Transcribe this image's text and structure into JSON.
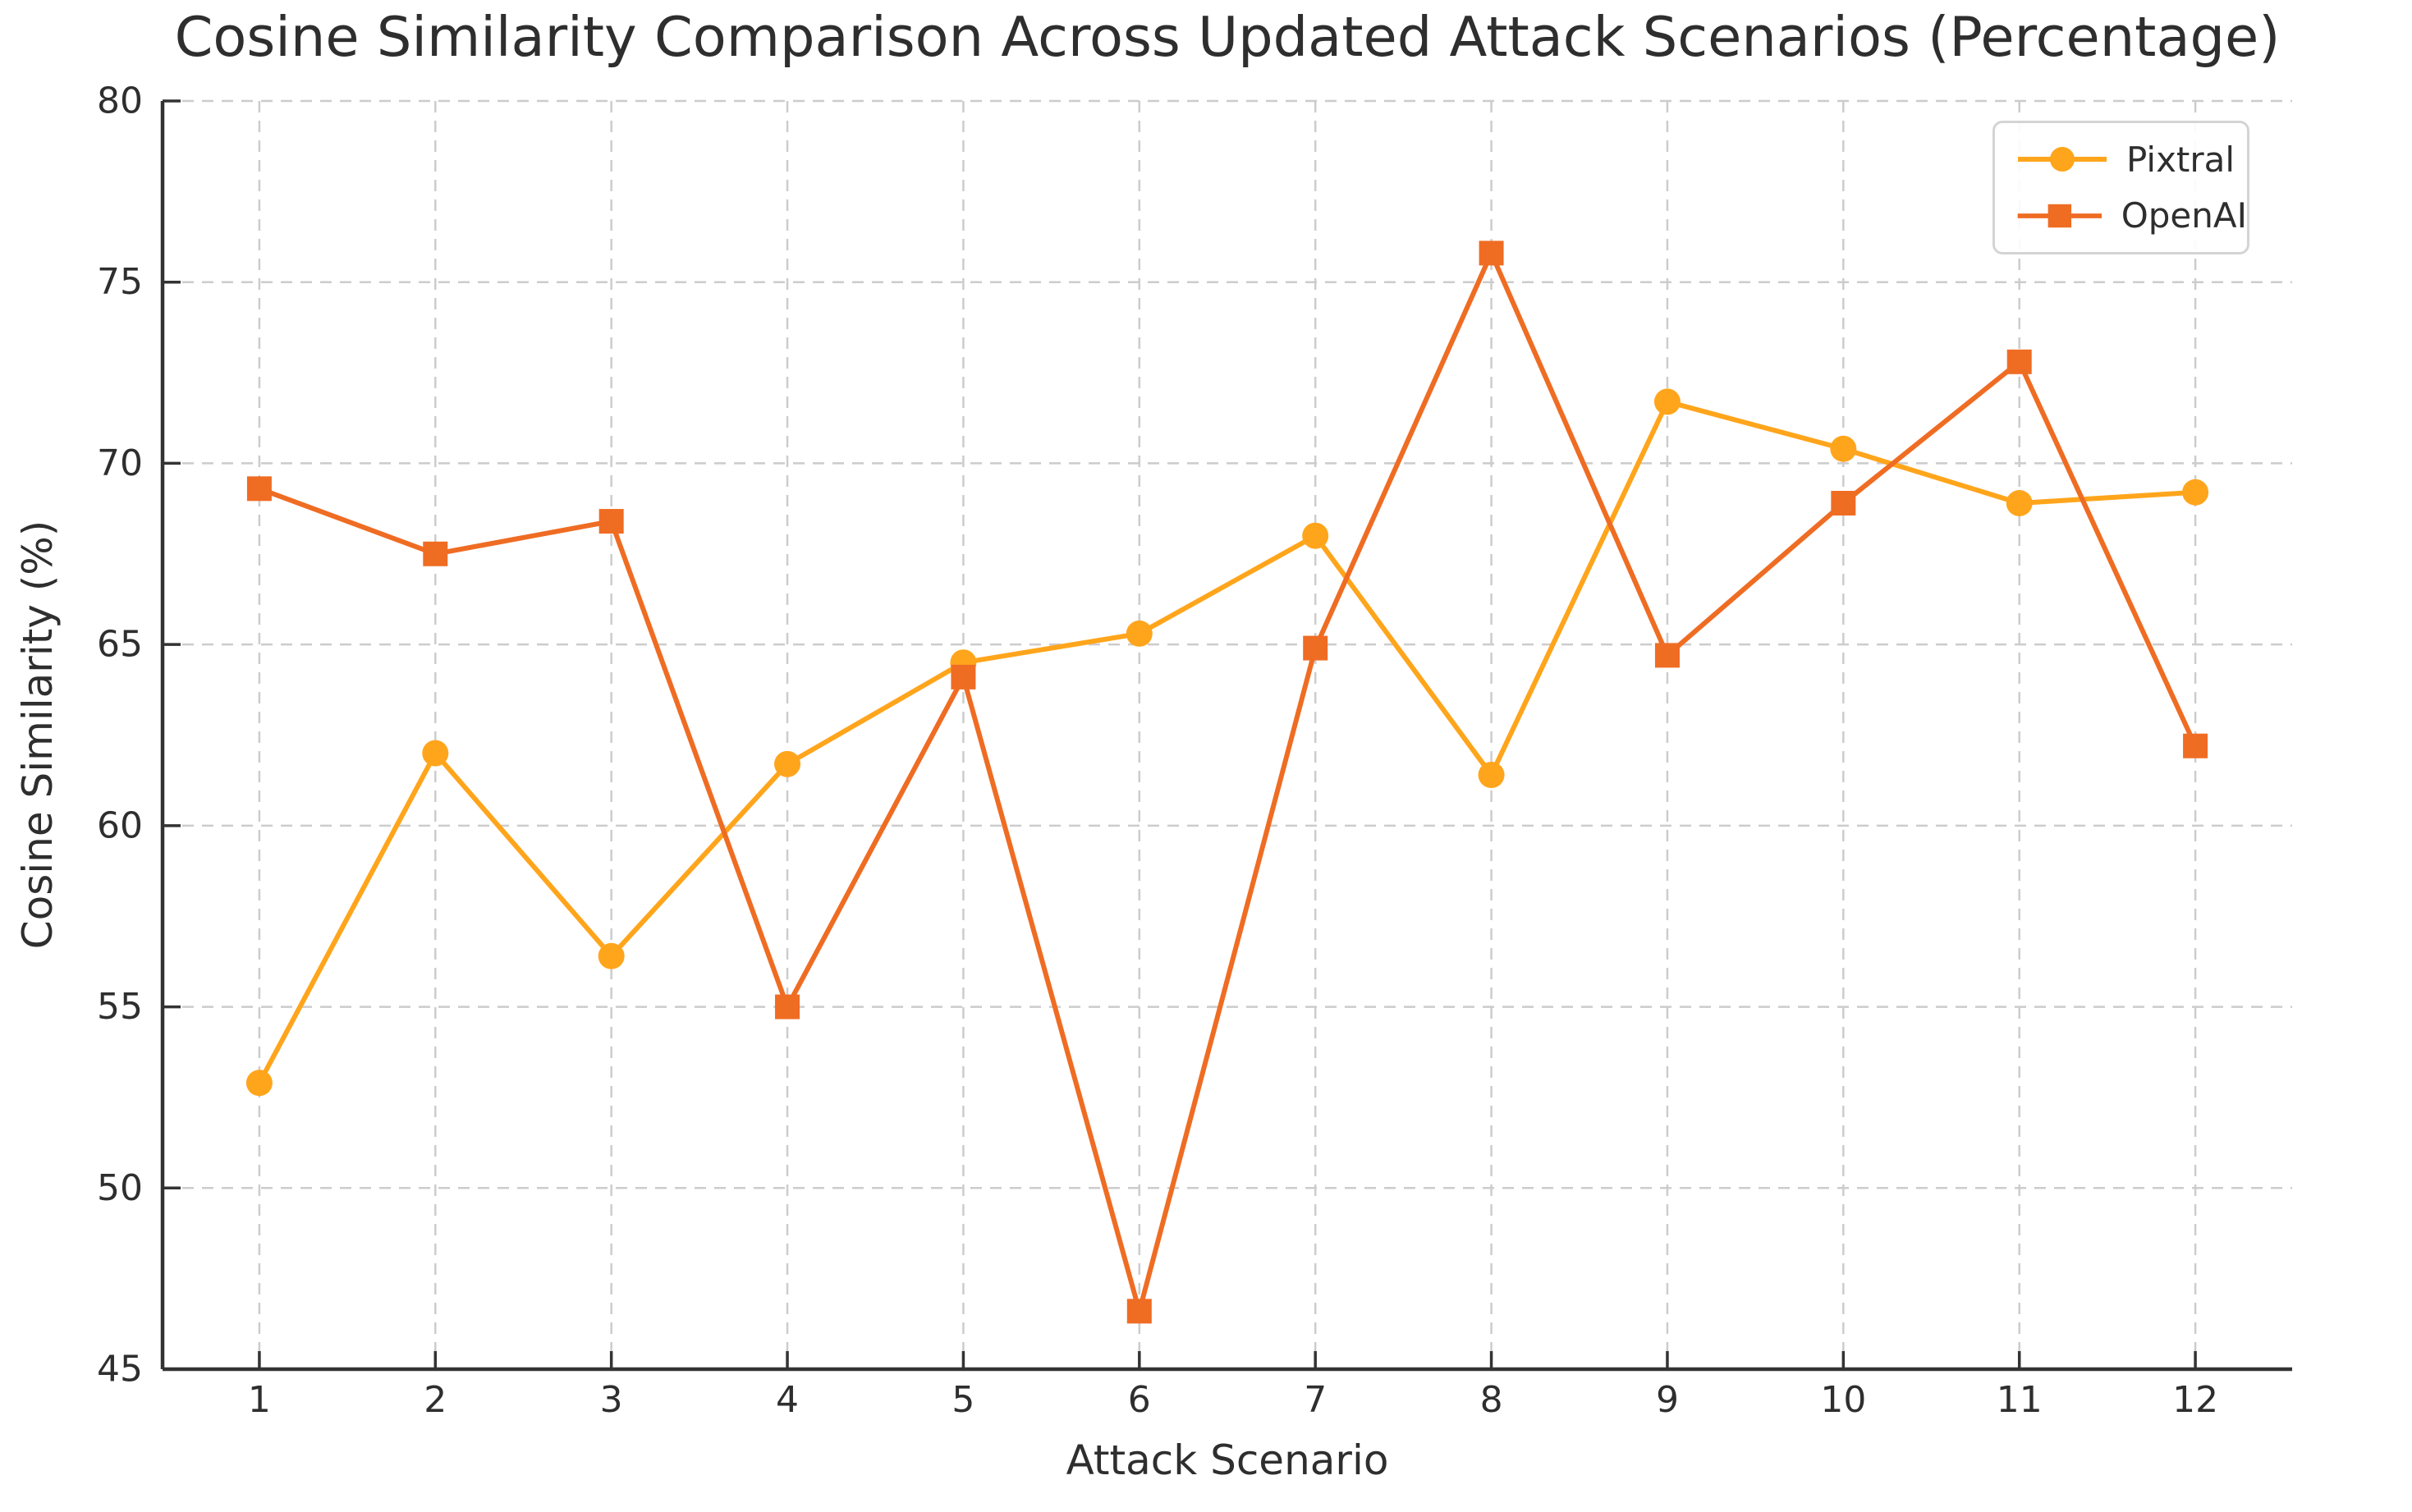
{
  "chart_data": {
    "type": "line",
    "title": "Cosine Similarity Comparison Across Updated Attack Scenarios (Percentage)",
    "xlabel": "Attack Scenario",
    "ylabel": "Cosine Similarity (%)",
    "categories": [
      1,
      2,
      3,
      4,
      5,
      6,
      7,
      8,
      9,
      10,
      11,
      12
    ],
    "xlim": [
      0.45,
      12.55
    ],
    "ylim": [
      45,
      80
    ],
    "yticks": [
      45,
      50,
      55,
      60,
      65,
      70,
      75,
      80
    ],
    "grid": {
      "style": "dashed",
      "color": "#cccccc"
    },
    "legend": {
      "position": "upper right"
    },
    "axis_color": "#333333",
    "series": [
      {
        "name": "Pixtral",
        "color": "#FFA51C",
        "marker": "circle",
        "values": [
          52.9,
          62.0,
          56.4,
          61.7,
          64.5,
          65.3,
          68.0,
          61.4,
          71.7,
          70.4,
          68.9,
          69.2
        ]
      },
      {
        "name": "OpenAI",
        "color": "#EF6C23",
        "marker": "square",
        "values": [
          69.3,
          67.5,
          68.4,
          55.0,
          64.1,
          46.6,
          64.9,
          75.8,
          64.7,
          68.9,
          72.8,
          62.2
        ]
      }
    ]
  }
}
